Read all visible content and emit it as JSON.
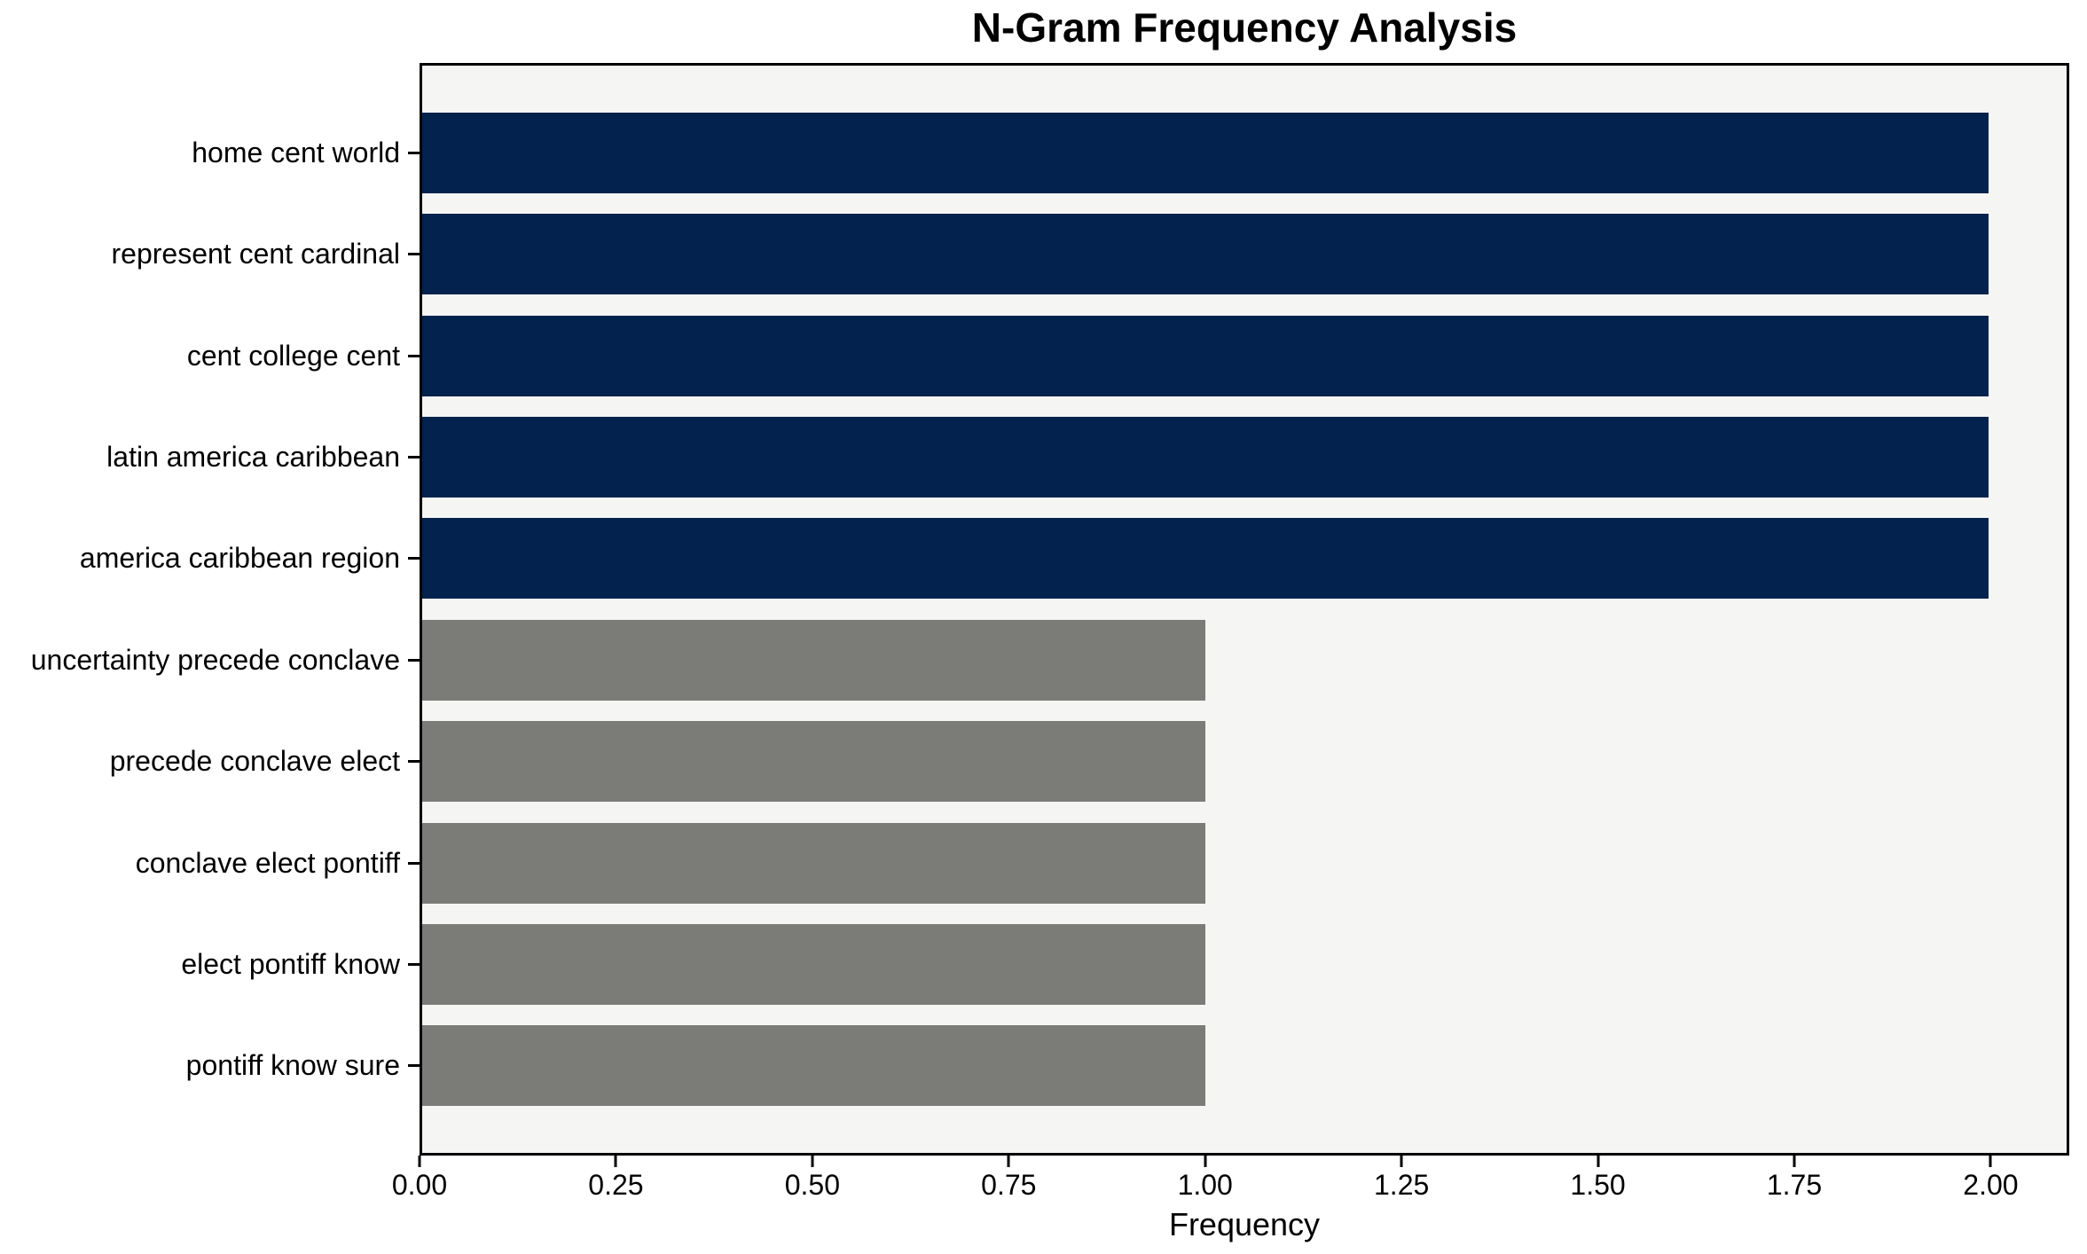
{
  "chart_data": {
    "type": "bar",
    "orientation": "horizontal",
    "title": "N-Gram Frequency Analysis",
    "xlabel": "Frequency",
    "ylabel": "",
    "categories": [
      "home cent world",
      "represent cent cardinal",
      "cent college cent",
      "latin america caribbean",
      "america caribbean region",
      "uncertainty precede conclave",
      "precede conclave elect",
      "conclave elect pontiff",
      "elect pontiff know",
      "pontiff know sure"
    ],
    "values": [
      2,
      2,
      2,
      2,
      2,
      1,
      1,
      1,
      1,
      1
    ],
    "bar_colors": [
      "#03224d",
      "#03224d",
      "#03224d",
      "#03224d",
      "#03224d",
      "#7b7b78",
      "#7b7b78",
      "#7b7b78",
      "#7b7b78",
      "#7b7b78"
    ],
    "xlim": [
      0,
      2.1
    ],
    "xticks": [
      0,
      0.25,
      0.5,
      0.75,
      1.0,
      1.25,
      1.5,
      1.75,
      2.0
    ],
    "xtick_labels": [
      "0.00",
      "0.25",
      "0.50",
      "0.75",
      "1.00",
      "1.25",
      "1.50",
      "1.75",
      "2.00"
    ],
    "grid": false,
    "legend": null,
    "colors": {
      "high_frequency": "#03224d",
      "low_frequency": "#7b7b78",
      "plot_background": "#f5f5f4",
      "figure_background": "#ffffff",
      "axis": "#000000"
    }
  }
}
